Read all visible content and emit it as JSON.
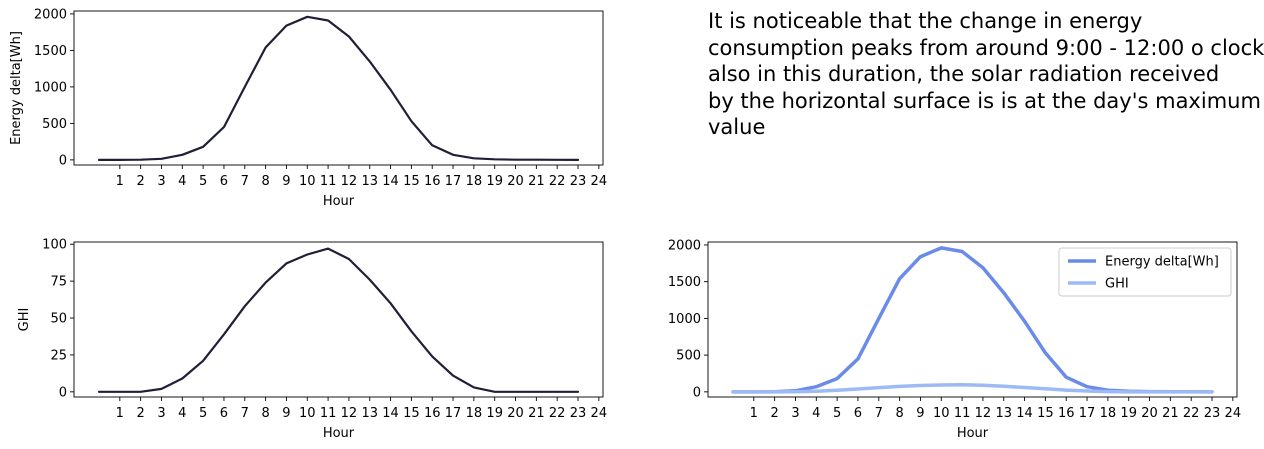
{
  "annotation": {
    "lines": [
      "It is noticeable that the change in energy",
      "consumption peaks from around 9:00 - 12:00 o clock",
      "also in this duration, the solar radiation received",
      "by the horizontal surface is is at the day's maximum",
      "value"
    ]
  },
  "colors": {
    "dark_line": "#1f1f38",
    "energy_line": "#6a8ce8",
    "ghi_line": "#9dbaf5"
  },
  "chart_data": [
    {
      "id": "energy",
      "type": "line",
      "title": "",
      "xlabel": "Hour",
      "ylabel": "Energy delta[Wh]",
      "xlim": [
        -1.2,
        24.2
      ],
      "ylim": [
        -70,
        2040
      ],
      "xticks": [
        1,
        2,
        3,
        4,
        5,
        6,
        7,
        8,
        9,
        10,
        11,
        12,
        13,
        14,
        15,
        16,
        17,
        18,
        19,
        20,
        21,
        22,
        23,
        24
      ],
      "yticks": [
        0,
        500,
        1000,
        1500,
        2000
      ],
      "x": [
        0,
        1,
        2,
        3,
        4,
        5,
        6,
        7,
        8,
        9,
        10,
        11,
        12,
        13,
        14,
        15,
        16,
        17,
        18,
        19,
        20,
        21,
        22,
        23
      ],
      "series": [
        {
          "name": "Energy delta[Wh]",
          "color": "#1f1f38",
          "width": 2.2,
          "values": [
            0,
            0,
            2,
            15,
            70,
            180,
            450,
            1000,
            1540,
            1840,
            1960,
            1910,
            1690,
            1350,
            960,
            530,
            200,
            70,
            22,
            8,
            3,
            2,
            1,
            0
          ]
        }
      ],
      "legend": null
    },
    {
      "id": "ghi",
      "type": "line",
      "title": "",
      "xlabel": "Hour",
      "ylabel": "GHI",
      "xlim": [
        -1.2,
        24.2
      ],
      "ylim": [
        -3.5,
        101.5
      ],
      "xticks": [
        1,
        2,
        3,
        4,
        5,
        6,
        7,
        8,
        9,
        10,
        11,
        12,
        13,
        14,
        15,
        16,
        17,
        18,
        19,
        20,
        21,
        22,
        23,
        24
      ],
      "yticks": [
        0,
        25,
        50,
        75,
        100
      ],
      "x": [
        0,
        1,
        2,
        3,
        4,
        5,
        6,
        7,
        8,
        9,
        10,
        11,
        12,
        13,
        14,
        15,
        16,
        17,
        18,
        19,
        20,
        21,
        22,
        23
      ],
      "series": [
        {
          "name": "GHI",
          "color": "#1f1f38",
          "width": 2.2,
          "values": [
            0,
            0,
            0,
            2,
            9,
            21,
            39,
            58,
            74,
            87,
            93,
            97,
            90,
            76,
            60,
            41,
            24,
            11,
            3,
            0,
            0,
            0,
            0,
            0
          ]
        }
      ],
      "legend": null
    },
    {
      "id": "combined",
      "type": "line",
      "title": "",
      "xlabel": "Hour",
      "ylabel": "",
      "xlim": [
        -1.2,
        24.2
      ],
      "ylim": [
        -70,
        2040
      ],
      "xticks": [
        1,
        2,
        3,
        4,
        5,
        6,
        7,
        8,
        9,
        10,
        11,
        12,
        13,
        14,
        15,
        16,
        17,
        18,
        19,
        20,
        21,
        22,
        23,
        24
      ],
      "yticks": [
        0,
        500,
        1000,
        1500,
        2000
      ],
      "x": [
        0,
        1,
        2,
        3,
        4,
        5,
        6,
        7,
        8,
        9,
        10,
        11,
        12,
        13,
        14,
        15,
        16,
        17,
        18,
        19,
        20,
        21,
        22,
        23
      ],
      "series": [
        {
          "name": "Energy delta[Wh]",
          "color": "#6a8ce8",
          "width": 3.5,
          "values": [
            0,
            0,
            2,
            15,
            70,
            180,
            450,
            1000,
            1540,
            1840,
            1960,
            1910,
            1690,
            1350,
            960,
            530,
            200,
            70,
            22,
            8,
            3,
            2,
            1,
            0
          ]
        },
        {
          "name": "GHI",
          "color": "#9dbaf5",
          "width": 3.5,
          "values": [
            0,
            0,
            0,
            2,
            9,
            21,
            39,
            58,
            74,
            87,
            93,
            97,
            90,
            76,
            60,
            41,
            24,
            11,
            3,
            0,
            0,
            0,
            0,
            0
          ]
        }
      ],
      "legend": "top-right"
    }
  ]
}
